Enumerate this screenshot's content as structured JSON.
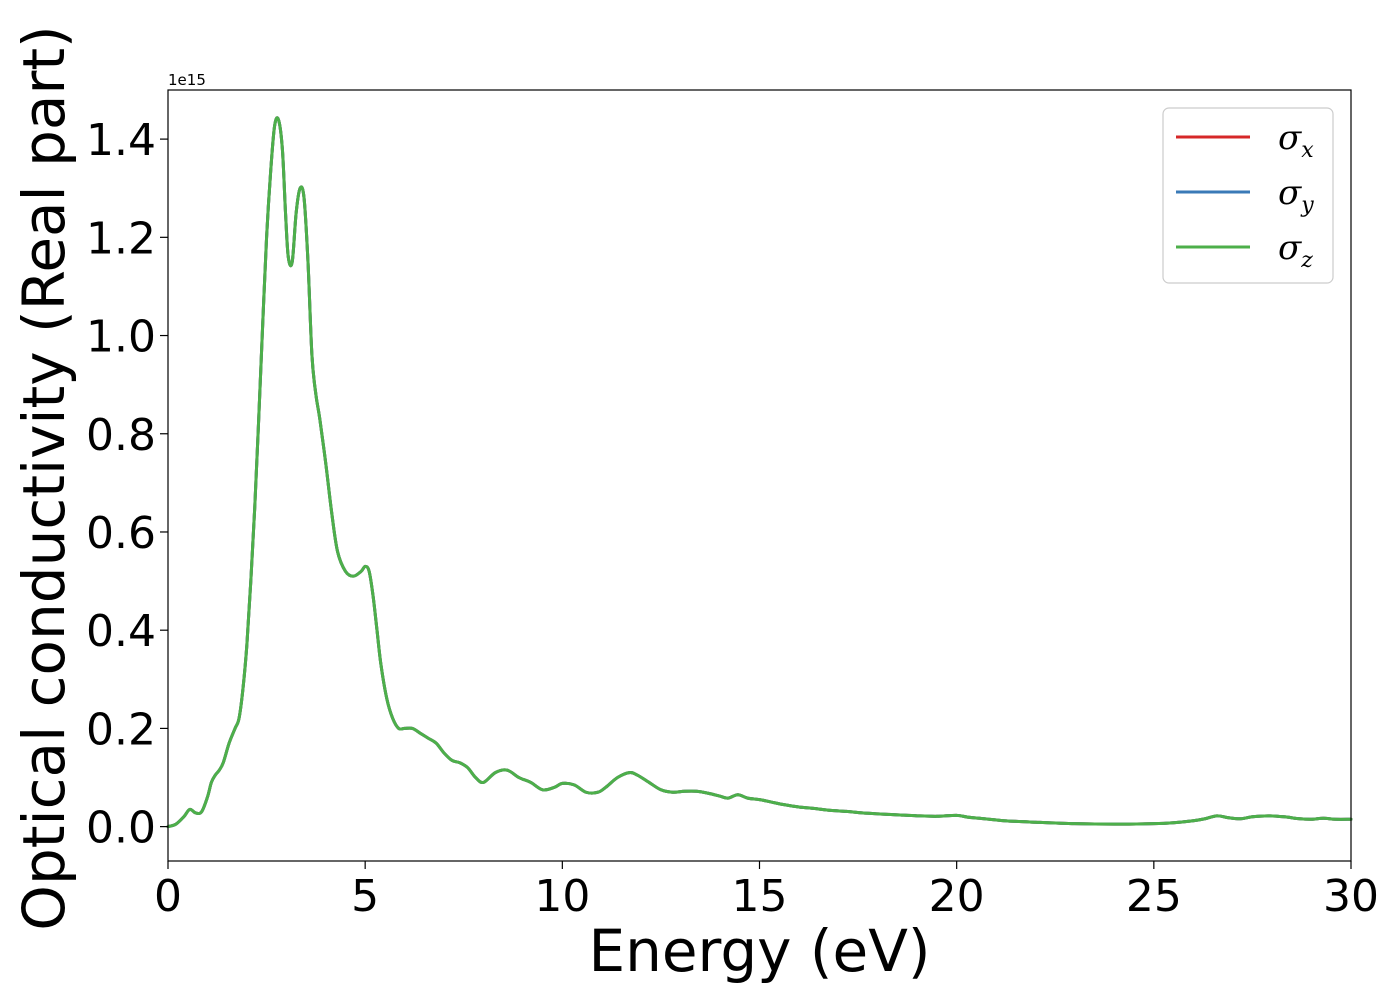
{
  "chart_data": {
    "type": "line",
    "title": "",
    "xlabel": "Energy (eV)",
    "ylabel": "Optical conductivity (Real part)",
    "y_offset_label": "1e15",
    "xlim": [
      0,
      30
    ],
    "ylim": [
      -0.07,
      1.5
    ],
    "xticks": [
      0,
      5,
      10,
      15,
      20,
      25,
      30
    ],
    "xtick_labels": [
      "0",
      "5",
      "10",
      "15",
      "20",
      "25",
      "30"
    ],
    "yticks": [
      0.0,
      0.2,
      0.4,
      0.6,
      0.8,
      1.0,
      1.2,
      1.4
    ],
    "ytick_labels": [
      "0.0",
      "0.2",
      "0.4",
      "0.6",
      "0.8",
      "1.0",
      "1.2",
      "1.4"
    ],
    "grid": false,
    "legend_position": "top-right",
    "x": [
      0,
      0.2,
      0.4,
      0.55,
      0.7,
      0.85,
      1.0,
      1.1,
      1.2,
      1.3,
      1.4,
      1.55,
      1.7,
      1.8,
      1.9,
      2.0,
      2.1,
      2.2,
      2.3,
      2.4,
      2.5,
      2.6,
      2.7,
      2.8,
      2.9,
      2.98,
      3.05,
      3.15,
      3.25,
      3.35,
      3.45,
      3.55,
      3.65,
      3.75,
      3.85,
      4.0,
      4.15,
      4.3,
      4.5,
      4.7,
      4.9,
      5.0,
      5.1,
      5.2,
      5.3,
      5.4,
      5.55,
      5.7,
      5.85,
      6.0,
      6.2,
      6.4,
      6.6,
      6.8,
      7.0,
      7.2,
      7.4,
      7.6,
      7.8,
      8.0,
      8.3,
      8.6,
      8.9,
      9.2,
      9.5,
      9.8,
      10.0,
      10.3,
      10.6,
      10.9,
      11.1,
      11.4,
      11.7,
      11.9,
      12.2,
      12.5,
      12.8,
      13.1,
      13.4,
      13.7,
      14.0,
      14.2,
      14.45,
      14.7,
      15.0,
      15.3,
      15.6,
      16.0,
      16.4,
      16.8,
      17.2,
      17.6,
      18.0,
      18.5,
      19.0,
      19.5,
      20.0,
      20.3,
      20.7,
      21.2,
      22.0,
      23.0,
      24.0,
      25.0,
      25.5,
      26.0,
      26.3,
      26.6,
      26.9,
      27.2,
      27.5,
      27.9,
      28.3,
      28.7,
      29.0,
      29.3,
      29.6,
      30.0
    ],
    "series": [
      {
        "name": "σx",
        "color": "#d62728",
        "values": [
          0.0,
          0.005,
          0.02,
          0.035,
          0.028,
          0.03,
          0.06,
          0.09,
          0.105,
          0.115,
          0.13,
          0.17,
          0.2,
          0.22,
          0.28,
          0.37,
          0.5,
          0.65,
          0.83,
          1.02,
          1.2,
          1.33,
          1.425,
          1.44,
          1.38,
          1.25,
          1.16,
          1.15,
          1.25,
          1.3,
          1.28,
          1.15,
          0.96,
          0.88,
          0.83,
          0.74,
          0.64,
          0.56,
          0.52,
          0.51,
          0.52,
          0.53,
          0.52,
          0.47,
          0.4,
          0.33,
          0.26,
          0.22,
          0.2,
          0.2,
          0.2,
          0.19,
          0.18,
          0.17,
          0.15,
          0.135,
          0.13,
          0.12,
          0.1,
          0.09,
          0.11,
          0.115,
          0.1,
          0.09,
          0.075,
          0.08,
          0.088,
          0.085,
          0.07,
          0.07,
          0.08,
          0.1,
          0.11,
          0.105,
          0.09,
          0.075,
          0.07,
          0.072,
          0.072,
          0.068,
          0.062,
          0.058,
          0.065,
          0.058,
          0.055,
          0.05,
          0.045,
          0.04,
          0.037,
          0.033,
          0.031,
          0.028,
          0.026,
          0.024,
          0.022,
          0.021,
          0.023,
          0.019,
          0.016,
          0.012,
          0.009,
          0.006,
          0.005,
          0.006,
          0.008,
          0.012,
          0.016,
          0.022,
          0.018,
          0.016,
          0.02,
          0.022,
          0.02,
          0.016,
          0.015,
          0.017,
          0.015,
          0.015
        ]
      },
      {
        "name": "σy",
        "color": "#3a7ab7",
        "values": [
          0.0,
          0.005,
          0.02,
          0.035,
          0.028,
          0.03,
          0.06,
          0.09,
          0.105,
          0.115,
          0.13,
          0.17,
          0.2,
          0.22,
          0.28,
          0.37,
          0.5,
          0.65,
          0.83,
          1.02,
          1.2,
          1.33,
          1.425,
          1.44,
          1.38,
          1.25,
          1.16,
          1.15,
          1.25,
          1.3,
          1.28,
          1.15,
          0.96,
          0.88,
          0.83,
          0.74,
          0.64,
          0.56,
          0.52,
          0.51,
          0.52,
          0.53,
          0.52,
          0.47,
          0.4,
          0.33,
          0.26,
          0.22,
          0.2,
          0.2,
          0.2,
          0.19,
          0.18,
          0.17,
          0.15,
          0.135,
          0.13,
          0.12,
          0.1,
          0.09,
          0.11,
          0.115,
          0.1,
          0.09,
          0.075,
          0.08,
          0.088,
          0.085,
          0.07,
          0.07,
          0.08,
          0.1,
          0.11,
          0.105,
          0.09,
          0.075,
          0.07,
          0.072,
          0.072,
          0.068,
          0.062,
          0.058,
          0.065,
          0.058,
          0.055,
          0.05,
          0.045,
          0.04,
          0.037,
          0.033,
          0.031,
          0.028,
          0.026,
          0.024,
          0.022,
          0.021,
          0.023,
          0.019,
          0.016,
          0.012,
          0.009,
          0.006,
          0.005,
          0.006,
          0.008,
          0.012,
          0.016,
          0.022,
          0.018,
          0.016,
          0.02,
          0.022,
          0.02,
          0.016,
          0.015,
          0.017,
          0.015,
          0.015
        ]
      },
      {
        "name": "σz",
        "color": "#4daf4a",
        "values": [
          0.0,
          0.005,
          0.02,
          0.035,
          0.028,
          0.03,
          0.06,
          0.09,
          0.105,
          0.115,
          0.13,
          0.17,
          0.2,
          0.22,
          0.28,
          0.37,
          0.5,
          0.65,
          0.83,
          1.02,
          1.2,
          1.33,
          1.425,
          1.44,
          1.38,
          1.25,
          1.16,
          1.15,
          1.25,
          1.3,
          1.28,
          1.15,
          0.96,
          0.88,
          0.83,
          0.74,
          0.64,
          0.56,
          0.52,
          0.51,
          0.52,
          0.53,
          0.52,
          0.47,
          0.4,
          0.33,
          0.26,
          0.22,
          0.2,
          0.2,
          0.2,
          0.19,
          0.18,
          0.17,
          0.15,
          0.135,
          0.13,
          0.12,
          0.1,
          0.09,
          0.11,
          0.115,
          0.1,
          0.09,
          0.075,
          0.08,
          0.088,
          0.085,
          0.07,
          0.07,
          0.08,
          0.1,
          0.11,
          0.105,
          0.09,
          0.075,
          0.07,
          0.072,
          0.072,
          0.068,
          0.062,
          0.058,
          0.065,
          0.058,
          0.055,
          0.05,
          0.045,
          0.04,
          0.037,
          0.033,
          0.031,
          0.028,
          0.026,
          0.024,
          0.022,
          0.021,
          0.023,
          0.019,
          0.016,
          0.012,
          0.009,
          0.006,
          0.005,
          0.006,
          0.008,
          0.012,
          0.016,
          0.022,
          0.018,
          0.016,
          0.02,
          0.022,
          0.02,
          0.016,
          0.015,
          0.017,
          0.015,
          0.015
        ]
      }
    ],
    "legend": [
      {
        "symbol": "σ",
        "subscript": "x",
        "color": "#d62728"
      },
      {
        "symbol": "σ",
        "subscript": "y",
        "color": "#3a7ab7"
      },
      {
        "symbol": "σ",
        "subscript": "z",
        "color": "#4daf4a"
      }
    ]
  }
}
